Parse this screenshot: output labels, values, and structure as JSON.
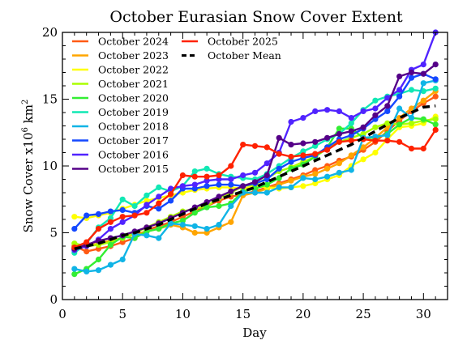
{
  "chart_data": {
    "type": "line",
    "title": "October Eurasian Snow Cover Extent",
    "xlabel": "Day",
    "ylabel": "Snow Cover x10",
    "ylabel_exponent": "6",
    "ylabel_unit": "km",
    "ylabel_unit_exponent": "2",
    "xlim": [
      0,
      32
    ],
    "ylim": [
      0,
      20
    ],
    "xticks": [
      "0",
      "5",
      "10",
      "15",
      "20",
      "25",
      "30"
    ],
    "yticks": [
      "0",
      "5",
      "10",
      "15",
      "20"
    ],
    "xtick_values": [
      0,
      5,
      10,
      15,
      20,
      25,
      30
    ],
    "ytick_values": [
      0,
      5,
      10,
      15,
      20
    ],
    "grid": false,
    "legend_placement": "top-left",
    "x": [
      1,
      2,
      3,
      4,
      5,
      6,
      7,
      8,
      9,
      10,
      11,
      12,
      13,
      14,
      15,
      16,
      17,
      18,
      19,
      20,
      21,
      22,
      23,
      24,
      25,
      26,
      27,
      28,
      29,
      30,
      31
    ],
    "series": [
      {
        "name": "October 2024",
        "color": "#ff5a14",
        "values": [
          4.0,
          3.6,
          3.8,
          4.0,
          4.3,
          4.6,
          5.2,
          5.5,
          5.8,
          6.2,
          6.6,
          7.0,
          7.4,
          7.7,
          7.9,
          8.1,
          8.4,
          8.7,
          9.0,
          9.3,
          9.7,
          10.0,
          10.4,
          10.7,
          11.2,
          11.8,
          12.6,
          13.4,
          14.1,
          14.7,
          15.2
        ]
      },
      {
        "name": "October 2023",
        "color": "#ffa500",
        "values": [
          3.8,
          4.0,
          4.2,
          4.4,
          4.6,
          4.9,
          5.1,
          5.3,
          5.6,
          5.4,
          5.0,
          5.0,
          5.4,
          5.8,
          7.8,
          8.0,
          8.3,
          8.6,
          8.9,
          9.2,
          9.4,
          9.8,
          10.2,
          10.8,
          11.4,
          12.1,
          12.9,
          13.6,
          14.3,
          14.9,
          15.6
        ]
      },
      {
        "name": "October 2022",
        "color": "#ffff00",
        "values": [
          6.2,
          6.1,
          6.3,
          6.5,
          6.8,
          7.1,
          7.4,
          7.6,
          7.8,
          8.0,
          8.2,
          8.3,
          8.4,
          8.4,
          8.3,
          8.5,
          8.4,
          8.3,
          8.4,
          8.5,
          8.7,
          9.0,
          9.3,
          10.0,
          10.5,
          11.0,
          12.0,
          12.9,
          13.0,
          13.2,
          13.7
        ]
      },
      {
        "name": "October 2021",
        "color": "#aaff00",
        "values": [
          4.2,
          4.0,
          4.1,
          4.3,
          4.6,
          5.0,
          5.4,
          5.8,
          6.2,
          6.6,
          6.8,
          7.0,
          7.6,
          8.0,
          8.5,
          8.6,
          9.1,
          9.6,
          9.9,
          10.3,
          10.7,
          11.3,
          11.8,
          12.1,
          12.4,
          12.9,
          13.2,
          13.1,
          13.2,
          13.4,
          13.5
        ]
      },
      {
        "name": "October 2020",
        "color": "#33ee33",
        "values": [
          1.9,
          2.3,
          3.0,
          4.1,
          4.7,
          4.6,
          5.1,
          5.3,
          5.7,
          5.9,
          6.5,
          6.9,
          7.0,
          7.2,
          8.1,
          8.3,
          8.6,
          9.1,
          9.8,
          10.1,
          10.7,
          11.4,
          12.8,
          12.8,
          12.1,
          12.1,
          12.4,
          13.1,
          13.6,
          13.5,
          13.1
        ]
      },
      {
        "name": "October 2019",
        "color": "#11e8b4",
        "values": [
          3.5,
          4.2,
          5.4,
          6.1,
          7.5,
          7.0,
          7.8,
          8.4,
          8.1,
          8.5,
          9.6,
          9.8,
          9.4,
          9.2,
          9.1,
          9.0,
          9.4,
          10.0,
          10.6,
          11.1,
          11.5,
          12.0,
          12.4,
          13.2,
          14.2,
          14.9,
          15.2,
          15.4,
          15.7,
          15.6,
          15.8
        ]
      },
      {
        "name": "October 2018",
        "color": "#10b4e6",
        "values": [
          2.3,
          2.1,
          2.2,
          2.6,
          3.0,
          4.9,
          4.8,
          4.6,
          5.7,
          5.6,
          5.5,
          5.3,
          5.6,
          7.0,
          8.0,
          8.0,
          8.0,
          8.4,
          8.4,
          9.1,
          9.0,
          9.2,
          9.5,
          9.7,
          12.1,
          12.2,
          12.3,
          14.3,
          13.6,
          16.2,
          16.4
        ]
      },
      {
        "name": "October 2017",
        "color": "#1448ff",
        "values": [
          5.3,
          6.3,
          6.4,
          6.6,
          6.7,
          6.5,
          7.0,
          6.8,
          7.4,
          8.3,
          8.3,
          8.5,
          8.6,
          8.6,
          8.5,
          8.7,
          9.0,
          9.8,
          10.3,
          10.6,
          10.8,
          11.4,
          12.0,
          12.3,
          12.8,
          13.5,
          14.1,
          15.2,
          16.6,
          16.9,
          16.5
        ]
      },
      {
        "name": "October 2016",
        "color": "#5023ff",
        "values": [
          3.7,
          4.0,
          4.5,
          5.3,
          5.8,
          6.3,
          7.1,
          7.7,
          8.3,
          8.5,
          8.6,
          8.9,
          9.0,
          9.0,
          9.3,
          9.5,
          10.2,
          11.0,
          13.3,
          13.6,
          14.1,
          14.2,
          14.1,
          13.6,
          14.1,
          14.3,
          15.1,
          15.7,
          17.2,
          17.6,
          20.0
        ]
      },
      {
        "name": "October 2015",
        "color": "#550088",
        "values": [
          3.8,
          4.1,
          4.4,
          4.6,
          4.8,
          5.1,
          5.4,
          5.7,
          6.1,
          6.5,
          6.9,
          7.3,
          7.7,
          8.1,
          8.5,
          8.8,
          9.3,
          12.1,
          11.6,
          11.7,
          11.8,
          12.1,
          12.4,
          12.6,
          12.9,
          13.8,
          14.5,
          16.7,
          17.0,
          16.9,
          17.6
        ]
      },
      {
        "name": "October 2025",
        "color": "#ff2200",
        "values": [
          3.9,
          4.3,
          5.3,
          5.8,
          6.2,
          6.3,
          6.5,
          7.2,
          7.9,
          9.3,
          9.2,
          9.2,
          9.3,
          10.0,
          11.6,
          11.5,
          11.4,
          10.9,
          10.7,
          10.8,
          10.9,
          11.2,
          11.8,
          11.9,
          12.0,
          11.9,
          11.9,
          11.8,
          11.3,
          11.3,
          12.7
        ]
      },
      {
        "name": "October Mean",
        "color": "#000000",
        "dashed": true,
        "markers": false,
        "values": [
          3.8,
          4.0,
          4.2,
          4.5,
          4.8,
          5.0,
          5.3,
          5.6,
          6.0,
          6.4,
          6.8,
          7.2,
          7.5,
          7.8,
          8.1,
          8.4,
          8.8,
          9.2,
          9.6,
          10.0,
          10.4,
          10.8,
          11.2,
          11.6,
          12.1,
          12.6,
          13.1,
          13.6,
          14.0,
          14.4,
          14.5
        ]
      }
    ],
    "legend_columns": [
      [
        "October 2024",
        "October 2023",
        "October 2022",
        "October 2021",
        "October 2020",
        "October 2019",
        "October 2018",
        "October 2017",
        "October 2016",
        "October 2015"
      ],
      [
        "October 2025",
        "October Mean"
      ]
    ]
  }
}
